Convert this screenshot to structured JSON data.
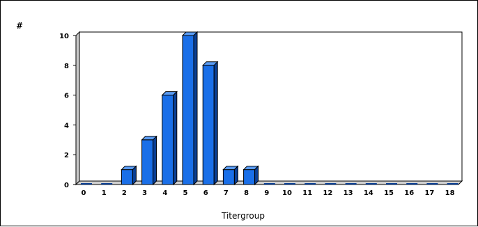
{
  "chart_data": {
    "type": "bar",
    "title": "",
    "xlabel": "Titergroup",
    "ylabel": "#",
    "categories": [
      "0",
      "1",
      "2",
      "3",
      "4",
      "5",
      "6",
      "7",
      "8",
      "9",
      "10",
      "11",
      "12",
      "13",
      "14",
      "15",
      "16",
      "17",
      "18"
    ],
    "values": [
      0,
      0,
      1,
      3,
      6,
      10,
      8,
      1,
      1,
      0,
      0,
      0,
      0,
      0,
      0,
      0,
      0,
      0,
      0
    ],
    "yticks": [
      "0",
      "2",
      "4",
      "6",
      "8",
      "10"
    ],
    "ylim": [
      0,
      10
    ],
    "grid": false,
    "legend": "none",
    "style": "3d",
    "colors": {
      "bar_front": "#1a6fe8",
      "bar_side": "#0a3f94",
      "bar_top": "#5a9cf4",
      "bar_outline": "#000000",
      "wall": "#ffffff",
      "wall_side": "#c8c8c8",
      "floor": "#d0d0d0"
    }
  }
}
